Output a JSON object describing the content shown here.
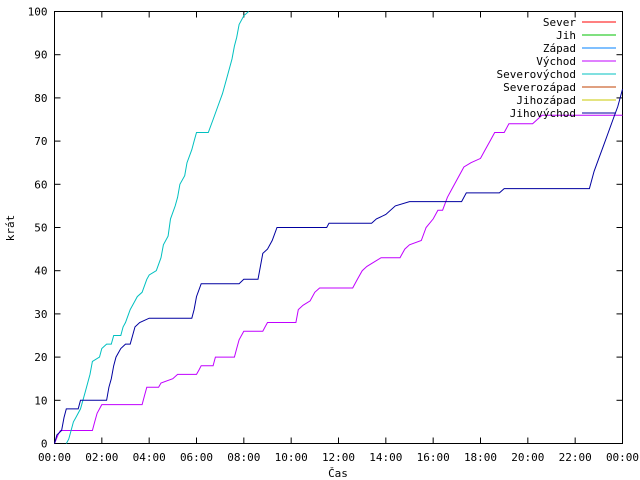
{
  "chart_data": {
    "type": "line",
    "xlabel": "Čas",
    "ylabel": "krát",
    "xlim": [
      0,
      24
    ],
    "ylim": [
      0,
      100
    ],
    "x_ticks": [
      {
        "value": 0,
        "label": "00:00"
      },
      {
        "value": 2,
        "label": "02:00"
      },
      {
        "value": 4,
        "label": "04:00"
      },
      {
        "value": 6,
        "label": "06:00"
      },
      {
        "value": 8,
        "label": "08:00"
      },
      {
        "value": 10,
        "label": "10:00"
      },
      {
        "value": 12,
        "label": "12:00"
      },
      {
        "value": 14,
        "label": "14:00"
      },
      {
        "value": 16,
        "label": "16:00"
      },
      {
        "value": 18,
        "label": "18:00"
      },
      {
        "value": 20,
        "label": "20:00"
      },
      {
        "value": 22,
        "label": "22:00"
      },
      {
        "value": 24,
        "label": "00:00"
      }
    ],
    "y_ticks": [
      0,
      10,
      20,
      30,
      40,
      50,
      60,
      70,
      80,
      90,
      100
    ],
    "grid": false,
    "legend_position": "top-right",
    "series": [
      {
        "name": "Sever",
        "color": "#ff0000",
        "points": []
      },
      {
        "name": "Jih",
        "color": "#00c000",
        "points": []
      },
      {
        "name": "Západ",
        "color": "#0080ff",
        "points": []
      },
      {
        "name": "Východ",
        "color": "#c000ff",
        "points": [
          [
            0,
            0
          ],
          [
            0.15,
            2
          ],
          [
            0.25,
            3
          ],
          [
            0.7,
            3
          ],
          [
            1.6,
            3
          ],
          [
            1.7,
            5
          ],
          [
            1.8,
            7
          ],
          [
            1.9,
            8
          ],
          [
            2.0,
            9
          ],
          [
            2.8,
            9
          ],
          [
            3.7,
            9
          ],
          [
            3.8,
            11
          ],
          [
            3.9,
            13
          ],
          [
            4.4,
            13
          ],
          [
            4.5,
            14
          ],
          [
            5.0,
            15
          ],
          [
            5.2,
            16
          ],
          [
            6.0,
            16
          ],
          [
            6.1,
            17
          ],
          [
            6.2,
            18
          ],
          [
            6.7,
            18
          ],
          [
            6.8,
            20
          ],
          [
            7.6,
            20
          ],
          [
            7.7,
            22
          ],
          [
            7.8,
            24
          ],
          [
            8.0,
            26
          ],
          [
            8.8,
            26
          ],
          [
            8.9,
            27
          ],
          [
            9.0,
            28
          ],
          [
            10.2,
            28
          ],
          [
            10.3,
            31
          ],
          [
            10.5,
            32
          ],
          [
            10.8,
            33
          ],
          [
            11.0,
            35
          ],
          [
            11.2,
            36
          ],
          [
            12.6,
            36
          ],
          [
            12.8,
            38
          ],
          [
            13.0,
            40
          ],
          [
            13.2,
            41
          ],
          [
            13.5,
            42
          ],
          [
            13.8,
            43
          ],
          [
            14.6,
            43
          ],
          [
            14.8,
            45
          ],
          [
            15.0,
            46
          ],
          [
            15.5,
            47
          ],
          [
            15.7,
            50
          ],
          [
            16.0,
            52
          ],
          [
            16.2,
            54
          ],
          [
            16.4,
            54
          ],
          [
            16.6,
            57
          ],
          [
            16.8,
            59
          ],
          [
            17.0,
            61
          ],
          [
            17.3,
            64
          ],
          [
            17.6,
            65
          ],
          [
            18.0,
            66
          ],
          [
            18.2,
            68
          ],
          [
            18.4,
            70
          ],
          [
            18.6,
            72
          ],
          [
            19.0,
            72
          ],
          [
            19.2,
            74
          ],
          [
            20.2,
            74
          ],
          [
            20.4,
            75
          ],
          [
            20.6,
            76
          ],
          [
            24.0,
            76
          ]
        ]
      },
      {
        "name": "Severovýchod",
        "color": "#00c0c0",
        "points": [
          [
            0.5,
            0
          ],
          [
            0.6,
            1
          ],
          [
            0.7,
            3
          ],
          [
            0.8,
            5
          ],
          [
            0.9,
            6
          ],
          [
            1.1,
            8
          ],
          [
            1.3,
            12
          ],
          [
            1.5,
            16
          ],
          [
            1.6,
            19
          ],
          [
            1.9,
            20
          ],
          [
            2.0,
            22
          ],
          [
            2.2,
            23
          ],
          [
            2.4,
            23
          ],
          [
            2.5,
            25
          ],
          [
            2.8,
            25
          ],
          [
            2.9,
            27
          ],
          [
            3.0,
            28
          ],
          [
            3.2,
            31
          ],
          [
            3.4,
            33
          ],
          [
            3.5,
            34
          ],
          [
            3.7,
            35
          ],
          [
            3.9,
            38
          ],
          [
            4.0,
            39
          ],
          [
            4.3,
            40
          ],
          [
            4.5,
            43
          ],
          [
            4.6,
            46
          ],
          [
            4.8,
            48
          ],
          [
            4.9,
            52
          ],
          [
            5.1,
            55
          ],
          [
            5.2,
            57
          ],
          [
            5.3,
            60
          ],
          [
            5.5,
            62
          ],
          [
            5.6,
            65
          ],
          [
            5.8,
            68
          ],
          [
            5.9,
            70
          ],
          [
            6.0,
            72
          ],
          [
            6.5,
            72
          ],
          [
            6.7,
            75
          ],
          [
            6.9,
            78
          ],
          [
            7.1,
            81
          ],
          [
            7.3,
            85
          ],
          [
            7.5,
            89
          ],
          [
            7.6,
            92
          ],
          [
            7.7,
            94
          ],
          [
            7.8,
            97
          ],
          [
            8.0,
            99
          ],
          [
            8.2,
            100
          ]
        ]
      },
      {
        "name": "Severozápad",
        "color": "#c04000",
        "points": []
      },
      {
        "name": "Jihozápad",
        "color": "#c8c800",
        "points": []
      },
      {
        "name": "Jihovýchod",
        "color": "#0000a0",
        "points": [
          [
            0,
            0
          ],
          [
            0.1,
            2
          ],
          [
            0.3,
            3
          ],
          [
            0.4,
            6
          ],
          [
            0.5,
            8
          ],
          [
            1.0,
            8
          ],
          [
            1.1,
            10
          ],
          [
            2.2,
            10
          ],
          [
            2.3,
            13
          ],
          [
            2.4,
            15
          ],
          [
            2.5,
            18
          ],
          [
            2.6,
            20
          ],
          [
            2.8,
            22
          ],
          [
            3.0,
            23
          ],
          [
            3.2,
            23
          ],
          [
            3.3,
            25
          ],
          [
            3.4,
            27
          ],
          [
            3.6,
            28
          ],
          [
            4.0,
            29
          ],
          [
            5.8,
            29
          ],
          [
            5.9,
            31
          ],
          [
            6.0,
            34
          ],
          [
            6.2,
            37
          ],
          [
            7.8,
            37
          ],
          [
            8.0,
            38
          ],
          [
            8.6,
            38
          ],
          [
            8.7,
            41
          ],
          [
            8.8,
            44
          ],
          [
            9.0,
            45
          ],
          [
            9.2,
            47
          ],
          [
            9.4,
            50
          ],
          [
            11.5,
            50
          ],
          [
            11.6,
            51
          ],
          [
            13.4,
            51
          ],
          [
            13.6,
            52
          ],
          [
            14.0,
            53
          ],
          [
            14.4,
            55
          ],
          [
            15.0,
            56
          ],
          [
            17.2,
            56
          ],
          [
            17.4,
            58
          ],
          [
            18.8,
            58
          ],
          [
            19.0,
            59
          ],
          [
            22.6,
            59
          ],
          [
            22.8,
            63
          ],
          [
            23.0,
            66
          ],
          [
            23.2,
            69
          ],
          [
            23.4,
            72
          ],
          [
            23.6,
            75
          ],
          [
            23.8,
            78
          ],
          [
            24.0,
            82
          ]
        ]
      }
    ]
  }
}
